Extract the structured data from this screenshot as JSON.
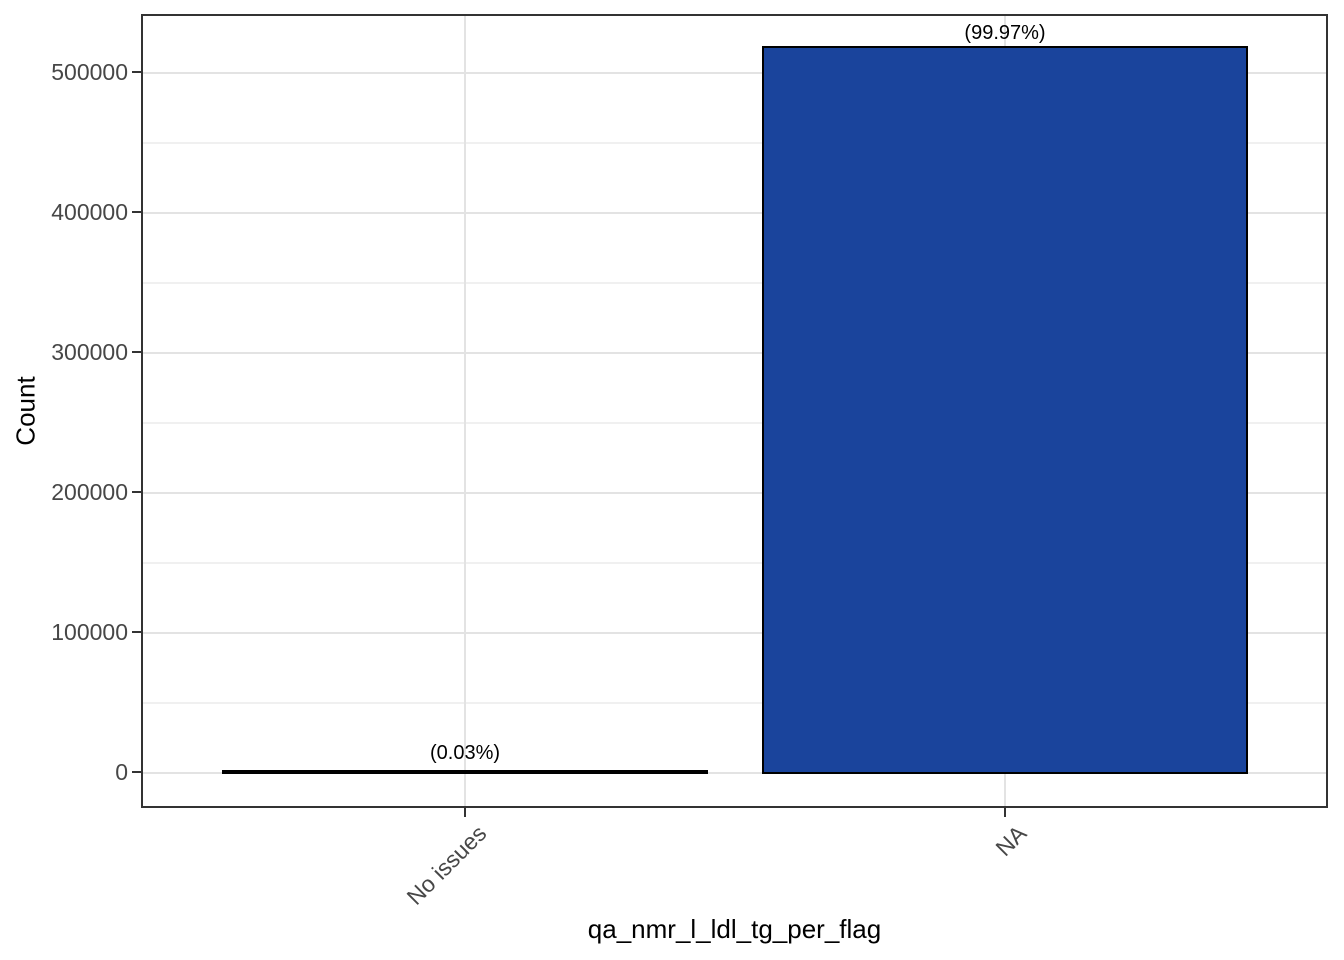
{
  "chart_data": {
    "type": "bar",
    "title": "",
    "xlabel": "qa_nmr_l_ldl_tg_per_flag",
    "ylabel": "Count",
    "categories": [
      "No issues",
      "NA"
    ],
    "values": [
      155,
      517000
    ],
    "bar_labels": [
      "(0.03%)",
      "(99.97%)"
    ],
    "yticks": [
      0,
      100000,
      200000,
      300000,
      400000,
      500000
    ],
    "ylim": [
      -26000,
      543000
    ],
    "grid": true,
    "legend": false,
    "bar_fill": "#1a449c",
    "bar_border": "#000000",
    "gridline_color": "#e3e3e3",
    "tick_label_color": "#474747"
  }
}
